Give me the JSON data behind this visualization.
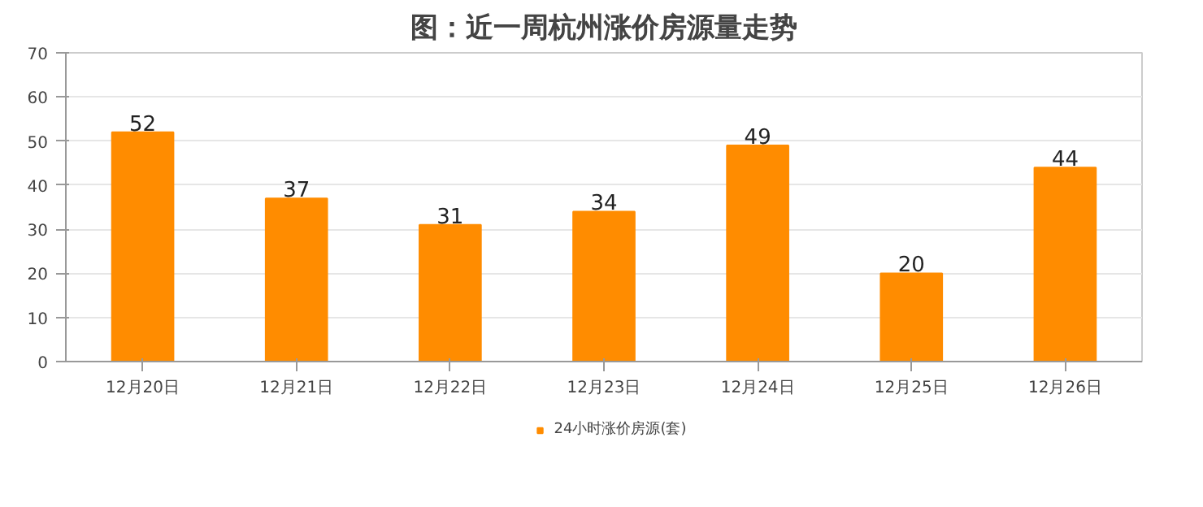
{
  "chart_data": {
    "type": "bar",
    "title": "图：近一周杭州涨价房源量走势",
    "categories": [
      "12月20日",
      "12月21日",
      "12月22日",
      "12月23日",
      "12月24日",
      "12月25日",
      "12月26日"
    ],
    "series": [
      {
        "name": "24小时涨价房源(套)",
        "color": "#ff8c00",
        "values": [
          52,
          37,
          31,
          34,
          49,
          20,
          44
        ]
      }
    ],
    "ylim": [
      0,
      70
    ],
    "yticks": [
      0,
      10,
      20,
      30,
      40,
      50,
      60,
      70
    ],
    "grid": "y",
    "legend": "bottom",
    "data_labels": true
  }
}
